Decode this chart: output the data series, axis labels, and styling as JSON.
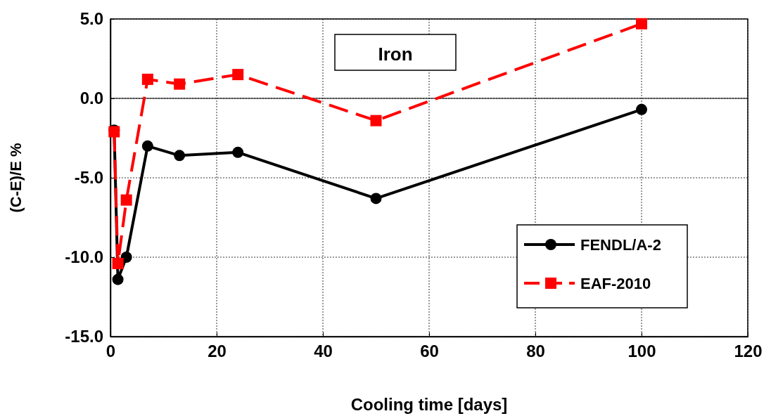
{
  "chart_data": {
    "type": "line",
    "title": "Iron",
    "xlabel": "Cooling time [days]",
    "ylabel": "(C-E)/E %",
    "x": [
      0.7,
      1.4,
      3,
      7,
      13,
      24,
      50,
      100
    ],
    "series": [
      {
        "name": "FENDL/A-2",
        "color": "#000000",
        "values": [
          -2.0,
          -11.4,
          -10.0,
          -3.0,
          -3.6,
          -3.4,
          -6.3,
          -0.7
        ],
        "marker": "circle",
        "line_style": "solid"
      },
      {
        "name": "EAF-2010",
        "color": "#ff0000",
        "values": [
          -2.1,
          -10.4,
          -6.4,
          1.2,
          0.9,
          1.5,
          -1.4,
          4.7
        ],
        "marker": "square",
        "line_style": "dashed"
      }
    ],
    "xlim": [
      0,
      120
    ],
    "xticks": [
      0,
      20,
      40,
      60,
      80,
      100,
      120
    ],
    "ylim": [
      -15,
      5
    ],
    "yticks": [
      {
        "value": -15,
        "label": "-15.0"
      },
      {
        "value": -10,
        "label": "-10.0"
      },
      {
        "value": -5,
        "label": "-5.0"
      },
      {
        "value": 0,
        "label": "0.0"
      },
      {
        "value": 5,
        "label": "5.0"
      }
    ],
    "ref_lines": [
      {
        "axis": "y",
        "value": 0,
        "color": "#000000",
        "line_style": "solid"
      }
    ],
    "grid": true,
    "legend": "bottom right"
  }
}
